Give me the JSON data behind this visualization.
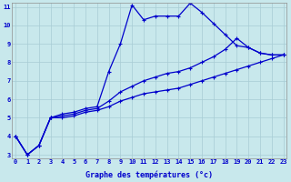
{
  "hours": [
    0,
    1,
    2,
    3,
    4,
    5,
    6,
    7,
    8,
    9,
    10,
    11,
    12,
    13,
    14,
    15,
    16,
    17,
    18,
    19,
    20,
    21,
    22,
    23
  ],
  "line1": [
    4.0,
    3.0,
    3.5,
    5.0,
    5.2,
    5.3,
    5.5,
    5.6,
    7.5,
    9.0,
    11.1,
    10.3,
    10.5,
    10.5,
    10.5,
    11.2,
    10.7,
    10.1,
    9.5,
    8.9,
    8.8,
    8.5,
    8.4,
    8.4
  ],
  "line2": [
    4.0,
    3.0,
    3.5,
    5.0,
    5.1,
    5.2,
    5.4,
    5.5,
    5.9,
    6.4,
    6.7,
    7.0,
    7.2,
    7.4,
    7.5,
    7.7,
    8.0,
    8.3,
    8.7,
    9.3,
    8.8,
    8.5,
    8.4,
    8.4
  ],
  "line3": [
    4.0,
    3.0,
    3.5,
    5.0,
    5.0,
    5.1,
    5.3,
    5.4,
    5.6,
    5.9,
    6.1,
    6.3,
    6.4,
    6.5,
    6.6,
    6.8,
    7.0,
    7.2,
    7.4,
    7.6,
    7.8,
    8.0,
    8.2,
    8.4
  ],
  "line_color": "#0000cc",
  "bg_color": "#c8e8ec",
  "grid_color": "#a8ccd4",
  "xlabel": "Graphe des températures (°c)",
  "ylim_min": 3,
  "ylim_max": 11,
  "xlim_min": 0,
  "xlim_max": 23,
  "yticks": [
    3,
    4,
    5,
    6,
    7,
    8,
    9,
    10,
    11
  ],
  "xticks": [
    0,
    1,
    2,
    3,
    4,
    5,
    6,
    7,
    8,
    9,
    10,
    11,
    12,
    13,
    14,
    15,
    16,
    17,
    18,
    19,
    20,
    21,
    22,
    23
  ],
  "tick_fontsize": 5,
  "xlabel_fontsize": 6,
  "linewidth": 0.9,
  "markersize": 2.5
}
